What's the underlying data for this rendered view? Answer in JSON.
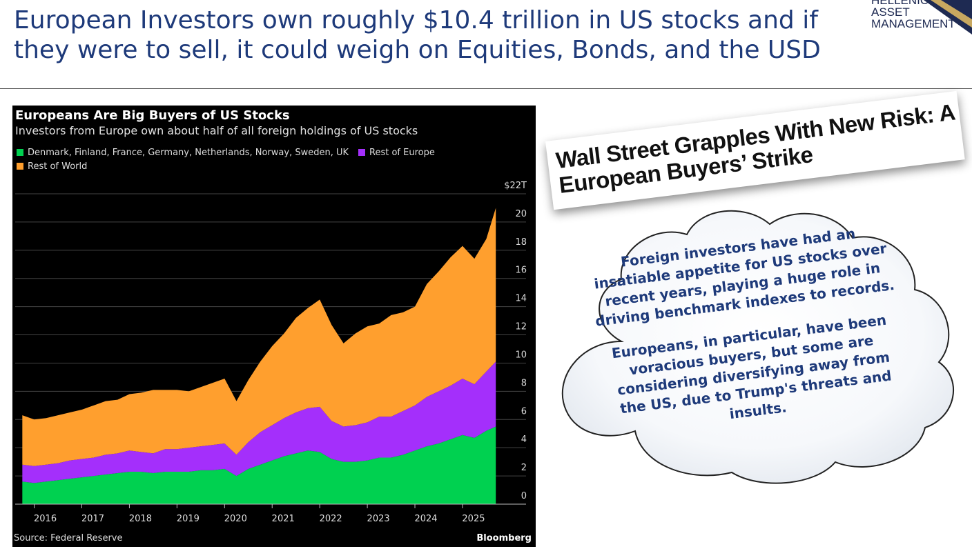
{
  "slide": {
    "title_line1": "European Investors own roughly $10.4 trillion in US stocks and if",
    "title_line2": "they were to sell, it could weigh on Equities, Bonds, and the USD"
  },
  "logo": {
    "line1": "HELLENIC",
    "line2": "ASSET",
    "line3": "MANAGEMENT"
  },
  "colors": {
    "green": "#00d150",
    "purple": "#a42ffb",
    "orange": "#ff9f2e",
    "title_blue": "#1e3a7a"
  },
  "chart_data": {
    "type": "area",
    "stacked": true,
    "title": "Europeans Are Big Buyers of US Stocks",
    "subtitle": "Investors from Europe own about half of all foreign holdings of US stocks",
    "legend": [
      {
        "name": "Denmark, Finland, France, Germany, Netherlands, Norway, Sweden, UK",
        "color": "#00d150"
      },
      {
        "name": "Rest of Europe",
        "color": "#a42ffb"
      },
      {
        "name": "Rest of World",
        "color": "#ff9f2e"
      }
    ],
    "x_range": [
      2015.6,
      2025.9
    ],
    "y_range": [
      0,
      22
    ],
    "y_ticks": [
      "0",
      "2",
      "4",
      "6",
      "8",
      "10",
      "12",
      "14",
      "16",
      "18",
      "20",
      "$22T"
    ],
    "x_ticks": [
      "2016",
      "2017",
      "2018",
      "2019",
      "2020",
      "2021",
      "2022",
      "2023",
      "2024",
      "2025"
    ],
    "x": [
      2015.75,
      2016.0,
      2016.25,
      2016.5,
      2016.75,
      2017.0,
      2017.25,
      2017.5,
      2017.75,
      2018.0,
      2018.25,
      2018.5,
      2018.75,
      2019.0,
      2019.25,
      2019.5,
      2019.75,
      2020.0,
      2020.25,
      2020.5,
      2020.75,
      2021.0,
      2021.25,
      2021.5,
      2021.75,
      2022.0,
      2022.25,
      2022.5,
      2022.75,
      2023.0,
      2023.25,
      2023.5,
      2023.75,
      2024.0,
      2024.25,
      2024.5,
      2024.75,
      2025.0,
      2025.25,
      2025.5,
      2025.7
    ],
    "series": [
      {
        "name": "Denmark, Finland, France, Germany, Netherlands, Norway, Sweden, UK",
        "values": [
          1.6,
          1.5,
          1.6,
          1.7,
          1.8,
          1.9,
          2.0,
          2.1,
          2.2,
          2.3,
          2.3,
          2.2,
          2.3,
          2.3,
          2.3,
          2.4,
          2.4,
          2.5,
          2.0,
          2.5,
          2.8,
          3.1,
          3.4,
          3.6,
          3.8,
          3.7,
          3.2,
          3.0,
          3.0,
          3.1,
          3.3,
          3.3,
          3.5,
          3.8,
          4.1,
          4.3,
          4.6,
          4.9,
          4.7,
          5.2,
          5.5
        ]
      },
      {
        "name": "Rest of Europe",
        "values": [
          1.2,
          1.2,
          1.2,
          1.2,
          1.3,
          1.3,
          1.3,
          1.4,
          1.4,
          1.5,
          1.4,
          1.4,
          1.6,
          1.6,
          1.7,
          1.7,
          1.8,
          1.8,
          1.5,
          1.9,
          2.3,
          2.5,
          2.7,
          2.9,
          3.0,
          3.2,
          2.7,
          2.5,
          2.6,
          2.7,
          2.9,
          2.9,
          3.1,
          3.2,
          3.5,
          3.7,
          3.8,
          4.0,
          3.8,
          4.2,
          4.6
        ]
      },
      {
        "name": "Rest of World",
        "values": [
          3.5,
          3.3,
          3.3,
          3.4,
          3.4,
          3.5,
          3.7,
          3.8,
          3.8,
          4.0,
          4.2,
          4.5,
          4.2,
          4.2,
          4.0,
          4.2,
          4.4,
          4.6,
          3.8,
          4.4,
          5.0,
          5.6,
          6.0,
          6.7,
          7.1,
          7.6,
          6.8,
          5.9,
          6.5,
          6.8,
          6.6,
          7.2,
          7.0,
          7.0,
          8.0,
          8.5,
          9.1,
          9.4,
          8.9,
          9.4,
          10.9
        ]
      }
    ],
    "source": "Source: Federal Reserve",
    "brand": "Bloomberg"
  },
  "headline": {
    "line1": "Wall Street Grapples With New Risk: A",
    "line2": "European Buyers’ Strike"
  },
  "callout": {
    "paragraph1": "Foreign investors have had an insatiable appetite for US stocks over recent years, playing a huge role in driving benchmark indexes to records.",
    "paragraph2": "Europeans, in particular, have been voracious buyers, but some are considering diversifying away from the US, due to Trump's threats and insults."
  }
}
